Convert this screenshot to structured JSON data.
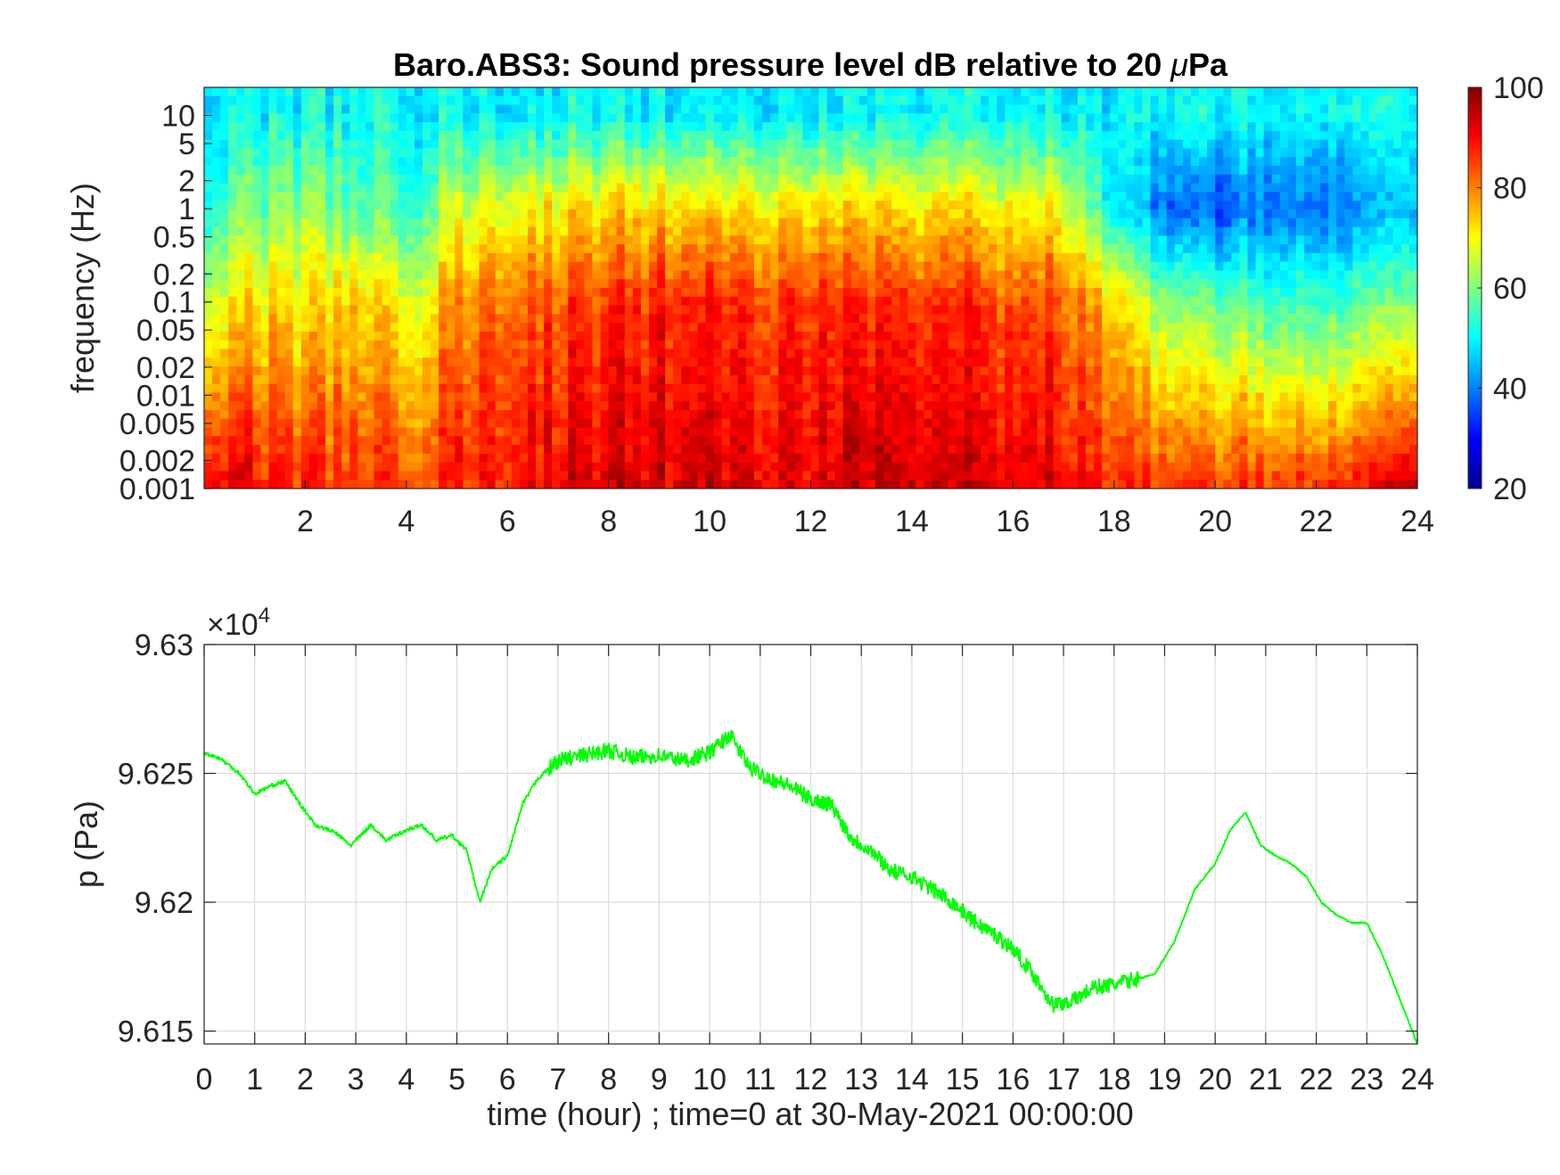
{
  "chart_data": [
    {
      "type": "heatmap",
      "title": "Baro.ABS3: Sound pressure level dB relative to 20 μPa",
      "title_prefix": "Baro.ABS3: Sound pressure level dB relative to 20 ",
      "title_mu": "μ",
      "title_suffix": "Pa",
      "ylabel": "frequency (Hz)",
      "y_scale": "log",
      "ylim": [
        0.001,
        20
      ],
      "y_ticks": [
        0.001,
        0.002,
        0.005,
        0.01,
        0.02,
        0.05,
        0.1,
        0.2,
        0.5,
        1,
        2,
        5,
        10
      ],
      "y_tick_labels": [
        "0.001",
        "0.002",
        "0.005",
        "0.01",
        "0.02",
        "0.05",
        "0.1",
        "0.2",
        "0.5",
        "1",
        "2",
        "5",
        "10"
      ],
      "xlim": [
        0,
        24
      ],
      "x_ticks": [
        2,
        4,
        6,
        8,
        10,
        12,
        14,
        16,
        18,
        20,
        22,
        24
      ],
      "x_tick_labels": [
        "2",
        "4",
        "6",
        "8",
        "10",
        "12",
        "14",
        "16",
        "18",
        "20",
        "22",
        "24"
      ],
      "colormap": "jet",
      "color_range": [
        20,
        100
      ],
      "colorbar_ticks": [
        20,
        40,
        60,
        80,
        100
      ],
      "colorbar_tick_labels": [
        "20",
        "40",
        "60",
        "80",
        "100"
      ],
      "approx_level_profile_db": {
        "hours": [
          0,
          1,
          2,
          3,
          4,
          5,
          6,
          7,
          8,
          9,
          10,
          11,
          12,
          13,
          14,
          15,
          16,
          17,
          18,
          19,
          20,
          21,
          22,
          23,
          24
        ],
        "at_0.001_Hz": [
          95,
          90,
          88,
          86,
          85,
          88,
          90,
          92,
          93,
          94,
          94,
          93,
          93,
          95,
          94,
          93,
          92,
          91,
          88,
          86,
          85,
          87,
          86,
          88,
          95
        ],
        "at_0.1_Hz": [
          68,
          72,
          70,
          74,
          68,
          78,
          84,
          84,
          86,
          88,
          88,
          87,
          88,
          87,
          86,
          86,
          84,
          84,
          74,
          60,
          58,
          56,
          55,
          56,
          60
        ],
        "at_1_Hz": [
          55,
          60,
          62,
          58,
          54,
          66,
          70,
          72,
          73,
          74,
          74,
          73,
          74,
          73,
          72,
          72,
          70,
          70,
          50,
          38,
          35,
          40,
          38,
          40,
          45
        ],
        "at_10_Hz": [
          50,
          50,
          50,
          50,
          50,
          50,
          50,
          50,
          50,
          50,
          50,
          50,
          50,
          50,
          50,
          50,
          50,
          50,
          50,
          50,
          50,
          50,
          50,
          50,
          50
        ]
      },
      "grid": false
    },
    {
      "type": "line",
      "xlabel": "time (hour) ; time=0 at 30-May-2021 00:00:00",
      "ylabel": "p (Pa)",
      "exponent_label": "×10",
      "exponent_power": "4",
      "xlim": [
        0,
        24
      ],
      "ylim": [
        96145,
        96300
      ],
      "x_ticks": [
        0,
        1,
        2,
        3,
        4,
        5,
        6,
        7,
        8,
        9,
        10,
        11,
        12,
        13,
        14,
        15,
        16,
        17,
        18,
        19,
        20,
        21,
        22,
        23,
        24
      ],
      "x_tick_labels": [
        "0",
        "1",
        "2",
        "3",
        "4",
        "5",
        "6",
        "7",
        "8",
        "9",
        "10",
        "11",
        "12",
        "13",
        "14",
        "15",
        "16",
        "17",
        "18",
        "19",
        "20",
        "21",
        "22",
        "23",
        "24"
      ],
      "y_ticks": [
        96150,
        96200,
        96250,
        96300
      ],
      "y_tick_labels": [
        "9.615",
        "9.62",
        "9.625",
        "9.63"
      ],
      "grid": true,
      "color": "#00ff00",
      "series": [
        {
          "x": [
            0,
            0.3,
            0.7,
            1.0,
            1.3,
            1.6,
            1.9,
            2.2,
            2.6,
            2.9,
            3.3,
            3.6,
            4.0,
            4.3,
            4.6,
            4.9,
            5.2,
            5.45,
            5.7,
            6.0,
            6.3,
            6.6,
            7.0,
            7.5,
            8.0,
            8.5,
            9.0,
            9.5,
            10.0,
            10.4,
            10.8,
            11.2,
            11.6,
            12.0,
            12.4,
            12.8,
            13.2,
            13.6,
            14.0,
            14.4,
            14.8,
            15.2,
            15.6,
            16.0,
            16.4,
            16.8,
            17.2,
            17.6,
            18.0,
            18.4,
            18.8,
            19.2,
            19.6,
            20.0,
            20.3,
            20.6,
            20.9,
            21.2,
            21.5,
            21.8,
            22.1,
            22.4,
            22.7,
            23.0,
            23.3,
            23.6,
            24.0
          ],
          "y": [
            96258,
            96256,
            96250,
            96242,
            96245,
            96247,
            96238,
            96230,
            96227,
            96222,
            96230,
            96224,
            96228,
            96230,
            96224,
            96226,
            96220,
            96200,
            96213,
            96218,
            96238,
            96248,
            96255,
            96257,
            96259,
            96256,
            96257,
            96255,
            96258,
            96265,
            96252,
            96248,
            96245,
            96240,
            96238,
            96225,
            96220,
            96212,
            96210,
            96205,
            96200,
            96193,
            96188,
            96182,
            96172,
            96160,
            96162,
            96167,
            96168,
            96170,
            96172,
            96185,
            96205,
            96215,
            96228,
            96235,
            96222,
            96218,
            96215,
            96210,
            96200,
            96195,
            96192,
            96192,
            96180,
            96165,
            96145
          ]
        }
      ]
    }
  ]
}
